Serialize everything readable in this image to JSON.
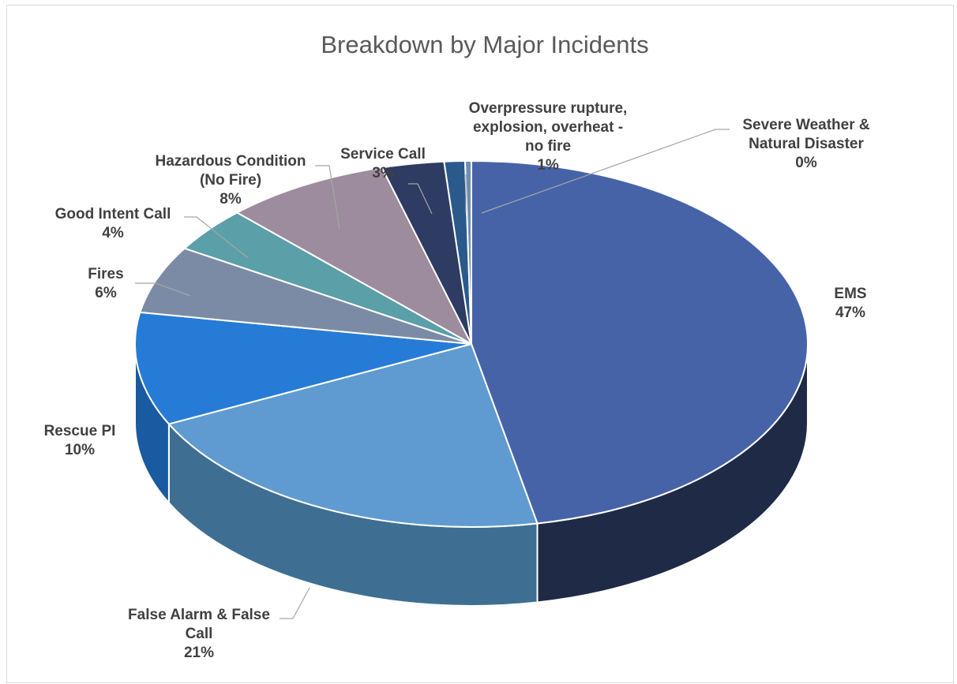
{
  "chart_data": {
    "type": "pie",
    "title": "Breakdown by Major Incidents",
    "slices": [
      {
        "name": "EMS",
        "label_lines": [
          "EMS"
        ],
        "value": 47,
        "pct_label": "47%",
        "color": "#4763A8",
        "side_color": "#1F2A47"
      },
      {
        "name": "False Alarm & False Call",
        "label_lines": [
          "False Alarm & False",
          "Call"
        ],
        "value": 21,
        "pct_label": "21%",
        "color": "#5F9BD0",
        "side_color": "#3E6F93"
      },
      {
        "name": "Rescue PI",
        "label_lines": [
          "Rescue PI"
        ],
        "value": 10,
        "pct_label": "10%",
        "color": "#267BD6",
        "side_color": "#1A5AA0"
      },
      {
        "name": "Fires",
        "label_lines": [
          "Fires"
        ],
        "value": 6,
        "pct_label": "6%",
        "color": "#7C8BA5",
        "side_color": "#5B6679"
      },
      {
        "name": "Good Intent Call",
        "label_lines": [
          "Good Intent Call"
        ],
        "value": 4,
        "pct_label": "4%",
        "color": "#5B9FA8",
        "side_color": "#3F737A"
      },
      {
        "name": "Hazardous Condition (No Fire)",
        "label_lines": [
          "Hazardous Condition",
          "(No Fire)"
        ],
        "value": 8,
        "pct_label": "8%",
        "color": "#9C8C9D",
        "side_color": "#6F6470"
      },
      {
        "name": "Service Call",
        "label_lines": [
          "Service Call"
        ],
        "value": 3,
        "pct_label": "3%",
        "color": "#2E3B63",
        "side_color": "#1E2744"
      },
      {
        "name": "Overpressure rupture, explosion, overheat - no fire",
        "label_lines": [
          "Overpressure rupture,",
          "explosion, overheat -",
          "no fire"
        ],
        "value": 1,
        "pct_label": "1%",
        "color": "#2A5A8C",
        "side_color": "#1C3F63"
      },
      {
        "name": "Severe Weather & Natural Disaster",
        "label_lines": [
          "Severe Weather &",
          "Natural Disaster"
        ],
        "value": 0.3,
        "pct_label": "0%",
        "color": "#6E8FB3",
        "side_color": "#4C6680"
      }
    ]
  }
}
